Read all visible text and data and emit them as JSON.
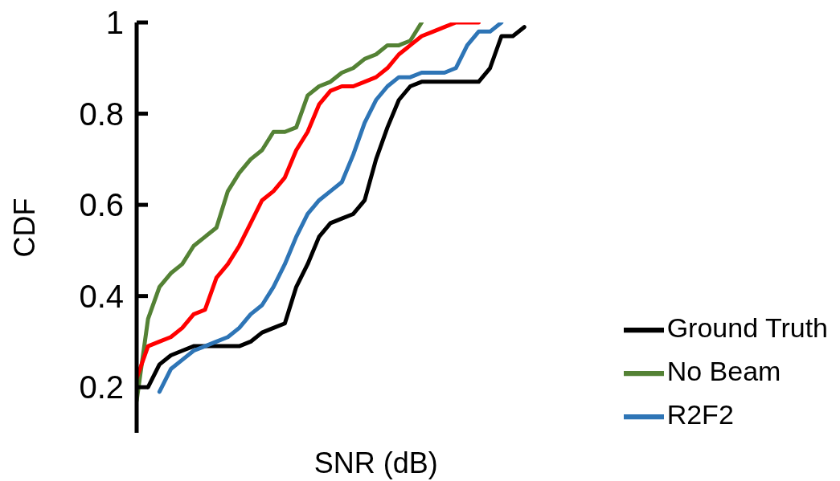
{
  "chart_data": {
    "type": "line",
    "xlabel": "SNR (dB)",
    "ylabel": "CDF",
    "categories": [
      null,
      null,
      null,
      null,
      null,
      null,
      null,
      null,
      null,
      null,
      null,
      null,
      null,
      null,
      null,
      null,
      null,
      null,
      null,
      null,
      null,
      null,
      null,
      null,
      null,
      null,
      null,
      null,
      null,
      null,
      null,
      null,
      null,
      null,
      null,
      null,
      null,
      null,
      null,
      null,
      null,
      null,
      null
    ],
    "series": [
      {
        "name": "No Beam",
        "color": "#548235",
        "values": [
          0.17,
          0.35,
          0.42,
          0.45,
          0.47,
          0.51,
          0.53,
          0.55,
          0.63,
          0.67,
          0.7,
          0.72,
          0.76,
          0.76,
          0.77,
          0.84,
          0.86,
          0.87,
          0.89,
          0.9,
          0.92,
          0.93,
          0.95,
          0.95,
          0.96,
          1.0,
          null,
          null,
          null,
          null,
          null,
          null,
          null,
          null,
          null,
          null,
          null,
          null,
          null,
          null,
          null,
          null,
          null
        ]
      },
      {
        "name": "Ground Truth",
        "color": "#000000",
        "values": [
          null,
          0.2,
          0.25,
          0.27,
          0.28,
          0.29,
          0.29,
          0.29,
          0.29,
          0.29,
          0.3,
          0.32,
          0.33,
          0.34,
          0.42,
          0.47,
          0.53,
          0.56,
          0.57,
          0.58,
          0.61,
          0.7,
          0.77,
          0.83,
          0.86,
          0.87,
          0.87,
          0.87,
          0.87,
          0.87,
          0.87,
          0.9,
          0.97,
          0.97,
          0.99,
          null,
          null,
          null,
          null,
          null,
          null,
          null,
          null
        ]
      },
      {
        "name": "R2F2",
        "color": "#2e75b6",
        "values": [
          null,
          null,
          0.19,
          0.24,
          0.26,
          0.28,
          0.29,
          0.3,
          0.31,
          0.33,
          0.36,
          0.38,
          0.42,
          0.47,
          0.53,
          0.58,
          0.61,
          0.63,
          0.65,
          0.71,
          0.78,
          0.83,
          0.86,
          0.88,
          0.88,
          0.89,
          0.89,
          0.89,
          0.9,
          0.95,
          0.98,
          0.98,
          1.0,
          null,
          null,
          null,
          null,
          null,
          null,
          null,
          null,
          null,
          null
        ]
      },
      {
        "color": "#ff0000",
        "values": [
          0.22,
          0.29,
          0.3,
          0.31,
          0.33,
          0.36,
          0.37,
          0.44,
          0.47,
          0.51,
          0.56,
          0.61,
          0.63,
          0.66,
          0.72,
          0.76,
          0.82,
          0.85,
          0.86,
          0.86,
          0.87,
          0.88,
          0.9,
          0.93,
          0.95,
          0.97,
          0.98,
          0.99,
          1.0,
          1.0,
          1.0,
          null,
          null,
          null,
          null,
          null,
          null,
          null,
          null,
          null,
          null,
          null,
          null
        ]
      }
    ],
    "ylim": [
      0.1,
      1
    ],
    "yticks": [
      0.2,
      0.4,
      0.6,
      0.8,
      1
    ],
    "tick_labels": "y",
    "grid": false,
    "legend": "bottom right",
    "marker": "none",
    "line_style": "solid"
  }
}
